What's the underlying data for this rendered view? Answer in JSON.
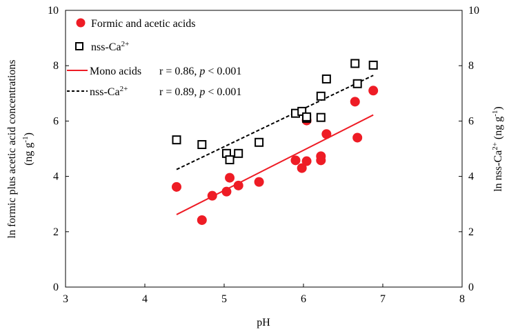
{
  "chart_data": {
    "type": "scatter",
    "xlabel": "pH",
    "ylabel_left_line1": "ln formic plus acetic acid concentrations",
    "ylabel_left_line2": "(ng g",
    "ylabel_left_sup": "-1",
    "ylabel_left_tail": ")",
    "ylabel_right_prefix": "ln nss-Ca",
    "ylabel_right_sup": "2+",
    "ylabel_right_mid": " (ng g",
    "ylabel_right_sup2": "-1",
    "ylabel_right_tail": ")",
    "xlim": [
      3,
      8
    ],
    "ylim": [
      0,
      10
    ],
    "y2lim": [
      0,
      10
    ],
    "xticks": [
      "3",
      "4",
      "5",
      "6",
      "7",
      "8"
    ],
    "yticks": [
      "0",
      "2",
      "4",
      "6",
      "8",
      "10"
    ],
    "y2ticks": [
      "0",
      "2",
      "4",
      "6",
      "8",
      "10"
    ],
    "legend_position": "top-left",
    "series": [
      {
        "name": "Formic and acetic acids",
        "marker": "filled-circle",
        "color": "#ee1c25",
        "points": [
          [
            4.4,
            3.62
          ],
          [
            4.72,
            2.42
          ],
          [
            4.85,
            3.3
          ],
          [
            5.03,
            3.45
          ],
          [
            5.07,
            3.95
          ],
          [
            5.18,
            3.67
          ],
          [
            5.44,
            3.8
          ],
          [
            5.9,
            4.58
          ],
          [
            5.98,
            4.3
          ],
          [
            6.04,
            4.55
          ],
          [
            6.04,
            6.02
          ],
          [
            6.22,
            4.58
          ],
          [
            6.22,
            4.73
          ],
          [
            6.29,
            5.53
          ],
          [
            6.65,
            6.7
          ],
          [
            6.68,
            5.4
          ],
          [
            6.88,
            7.1
          ]
        ]
      },
      {
        "name": "nss-Ca",
        "name_sup": "2+",
        "marker": "open-square",
        "color": "#000000",
        "points": [
          [
            4.4,
            5.32
          ],
          [
            4.72,
            5.15
          ],
          [
            5.03,
            4.83
          ],
          [
            5.07,
            4.6
          ],
          [
            5.18,
            4.83
          ],
          [
            5.44,
            5.23
          ],
          [
            5.9,
            6.28
          ],
          [
            5.98,
            6.35
          ],
          [
            6.04,
            6.1
          ],
          [
            6.04,
            6.15
          ],
          [
            6.22,
            6.13
          ],
          [
            6.22,
            6.9
          ],
          [
            6.29,
            7.52
          ],
          [
            6.65,
            8.08
          ],
          [
            6.68,
            7.35
          ],
          [
            6.88,
            8.02
          ]
        ]
      }
    ],
    "fits": [
      {
        "name": "Mono acids",
        "style": "solid",
        "color": "#ee1c25",
        "x": [
          4.4,
          6.88
        ],
        "y": [
          2.62,
          6.22
        ],
        "stat_r": "r = 0.86, ",
        "stat_p": "p",
        "stat_tail": " < 0.001"
      },
      {
        "name": "nss-Ca",
        "name_sup": "2+",
        "style": "dashed",
        "color": "#000000",
        "x": [
          4.4,
          6.88
        ],
        "y": [
          4.25,
          7.65
        ],
        "stat_r": "r = 0.89, ",
        "stat_p": "p",
        "stat_tail": " < 0.001"
      }
    ]
  }
}
